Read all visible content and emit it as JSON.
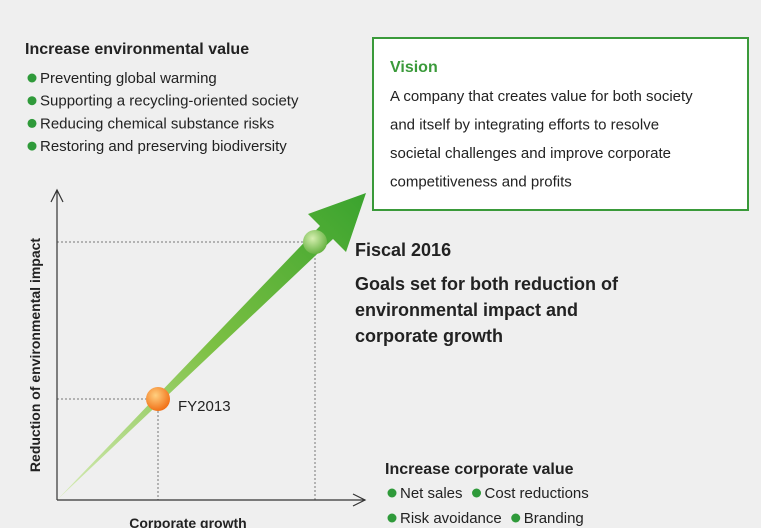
{
  "environmental": {
    "title": "Increase environmental value",
    "items": [
      "Preventing global warming",
      "Supporting a recycling-oriented society",
      "Reducing chemical substance risks",
      "Restoring and preserving biodiversity"
    ]
  },
  "vision": {
    "title": "Vision",
    "lines": [
      "A company that creates value for both society",
      "and itself by integrating efforts to resolve",
      "societal challenges and improve corporate",
      "competitiveness and profits"
    ]
  },
  "axes": {
    "y_label": "Reduction of environmental impact",
    "x_label": "Corporate growth"
  },
  "points": {
    "start": "FY2013",
    "goal_title": "Fiscal 2016",
    "goal_lines": [
      "Goals set for both reduction of",
      "environmental impact and",
      "corporate growth"
    ]
  },
  "corporate": {
    "title": "Increase corporate value",
    "rows": [
      [
        "Net sales",
        "Cost reductions"
      ],
      [
        "Risk avoidance",
        "Branding"
      ]
    ]
  }
}
